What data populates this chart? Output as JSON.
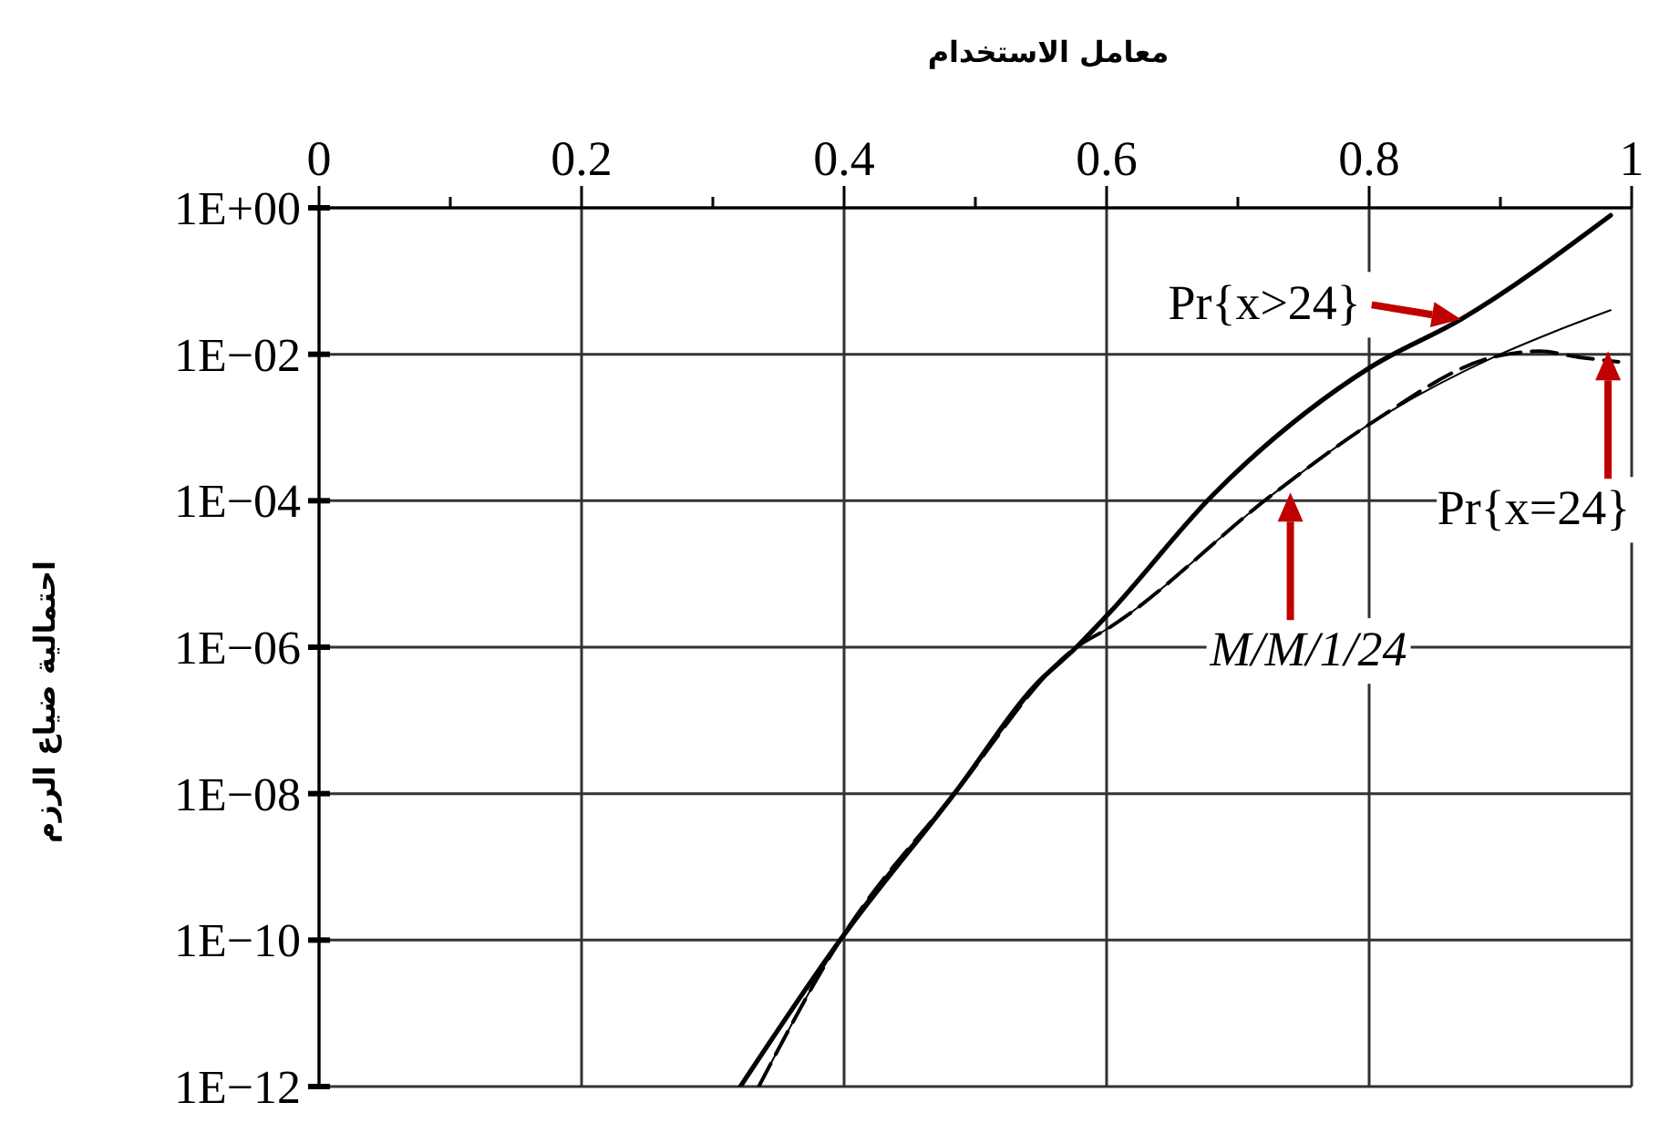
{
  "chart_data": {
    "type": "line",
    "xlabel": "معامل الاستخدام",
    "ylabel": "احتمالية ضياع الرزم",
    "log": "y",
    "grid": true,
    "marker": "none",
    "xlim": [
      0,
      1
    ],
    "xticks": [
      0,
      {
        "value": 0.1,
        "label": null
      },
      0.2,
      {
        "value": 0.3,
        "label": null
      },
      0.4,
      {
        "value": 0.5,
        "label": null
      },
      0.6,
      {
        "value": 0.7,
        "label": null
      },
      0.8,
      {
        "value": 0.9,
        "label": null
      },
      1
    ],
    "ylim": [
      1e-12,
      1
    ],
    "yticks": [
      {
        "value": 1e-12,
        "label": "1E−12"
      },
      {
        "value": 1e-10,
        "label": "1E−10"
      },
      {
        "value": 1e-08,
        "label": "1E−08"
      },
      {
        "value": 1e-06,
        "label": "1E−06"
      },
      {
        "value": 0.0001,
        "label": "1E−04"
      },
      {
        "value": 0.01,
        "label": "1E−02"
      },
      {
        "value": 1,
        "label": "1E+00"
      }
    ],
    "series": [
      {
        "color": "#000000",
        "line_style": "solid",
        "x": [
          0.321,
          0.397,
          0.484,
          0.547,
          0.577,
          0.601,
          0.681,
          0.8,
          0.87,
          0.984
        ],
        "values": [
          1e-12,
          1e-10,
          1e-08,
          3.2e-07,
          1e-06,
          2.8e-06,
          0.00012,
          0.0065,
          0.03,
          0.79
        ]
      },
      {
        "color": "#000000",
        "line_style": "solid",
        "x": [
          0.335,
          0.397,
          0.484,
          0.577,
          0.601,
          0.726,
          0.8,
          0.896,
          0.94,
          0.984
        ],
        "values": [
          1e-12,
          1e-10,
          1e-08,
          1e-06,
          1.8e-06,
          0.00012,
          0.0011,
          0.0093,
          0.02,
          0.04
        ]
      },
      {
        "color": "#000000",
        "line_style": "dashed",
        "x": [
          0.335,
          0.397,
          0.484,
          0.577,
          0.601,
          0.726,
          0.8,
          0.896,
          0.93,
          0.96,
          0.99
        ],
        "values": [
          1e-12,
          1e-10,
          1e-08,
          1e-06,
          1.8e-06,
          0.00012,
          0.0011,
          0.0093,
          0.011,
          0.0091,
          0.0079
        ]
      }
    ],
    "annotations": [
      {
        "text": "Pr{x>24}",
        "x": 0.87,
        "y": 0.03
      },
      {
        "text": "Pr{x=24}",
        "x": 0.982,
        "y": 0.011
      },
      {
        "text": "M/M/1/24",
        "x": 0.74,
        "y": 0.00013
      }
    ]
  }
}
